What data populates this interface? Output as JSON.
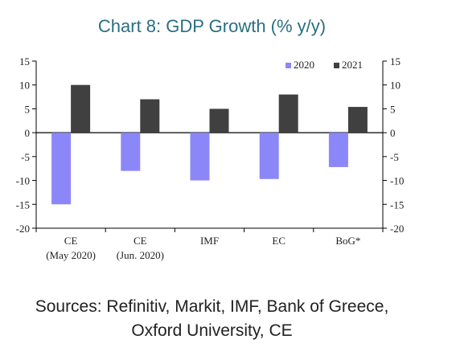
{
  "title": "Chart 8: GDP Growth (% y/y)",
  "sources": {
    "line1": "Sources: Refinitiv, Markit, IMF, Bank of Greece,",
    "line2": "Oxford University, CE"
  },
  "colors": {
    "s2020": "#8c87f8",
    "s2021": "#404040"
  },
  "chart_data": {
    "type": "bar",
    "categories": [
      [
        "CE",
        "(May 2020)"
      ],
      [
        "CE",
        "(Jun. 2020)"
      ],
      [
        "IMF"
      ],
      [
        "EC"
      ],
      [
        "BoG*"
      ]
    ],
    "series": [
      {
        "name": "2020",
        "values": [
          -15,
          -8,
          -10,
          -9.7,
          -7.2
        ]
      },
      {
        "name": "2021",
        "values": [
          10,
          7,
          5,
          8,
          5.4
        ]
      }
    ],
    "ylim": [
      -20,
      15
    ],
    "yticks": [
      15,
      10,
      5,
      0,
      -5,
      -10,
      -15,
      -20
    ],
    "ytick_labels": [
      "15",
      "10",
      "5",
      "0",
      "-5",
      "-10",
      "-15",
      "-20"
    ],
    "legend_position": "top-right",
    "grid": false
  }
}
